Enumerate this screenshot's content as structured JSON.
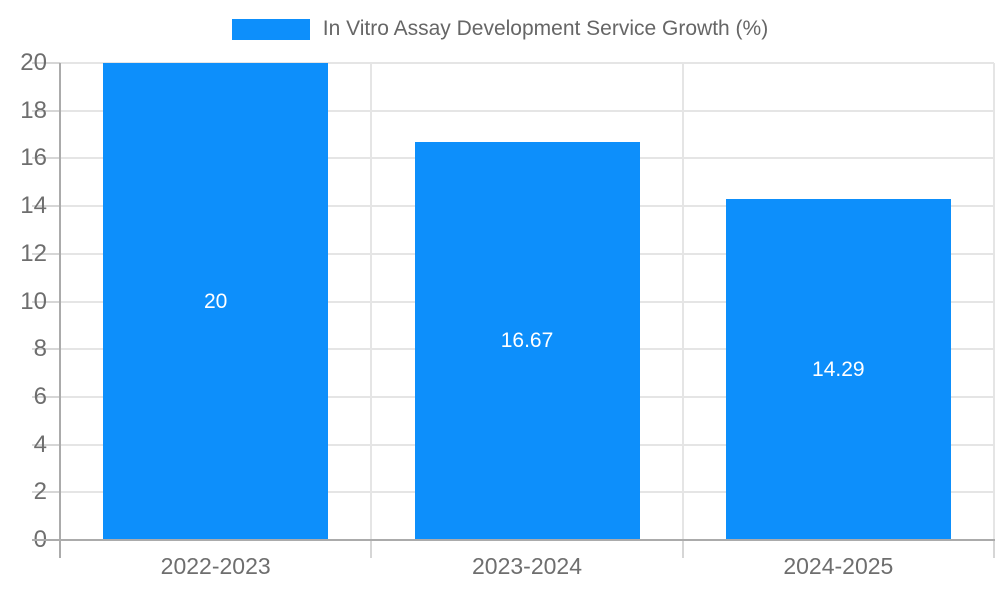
{
  "chart_data": {
    "type": "bar",
    "title": "",
    "legend": {
      "position": "top-center",
      "label": "In Vitro Assay Development Service Growth (%)"
    },
    "categories": [
      "2022-2023",
      "2023-2024",
      "2024-2025"
    ],
    "values": [
      20,
      16.67,
      14.29
    ],
    "data_labels": [
      "20",
      "16.67",
      "14.29"
    ],
    "ylim": [
      0,
      20
    ],
    "ytick_step": 2,
    "yticks": [
      0,
      2,
      4,
      6,
      8,
      10,
      12,
      14,
      16,
      18,
      20
    ],
    "grid": true,
    "xlabel": "",
    "ylabel": "",
    "colors": {
      "bar": "#0D8FFB",
      "grid": "#e5e5e5",
      "axis": "#ababab",
      "tick": "#d6d6d6",
      "axis_label": "#6e6e6e",
      "legend_label": "#666666",
      "data_label": "#ffffff",
      "background": "#ffffff"
    }
  }
}
